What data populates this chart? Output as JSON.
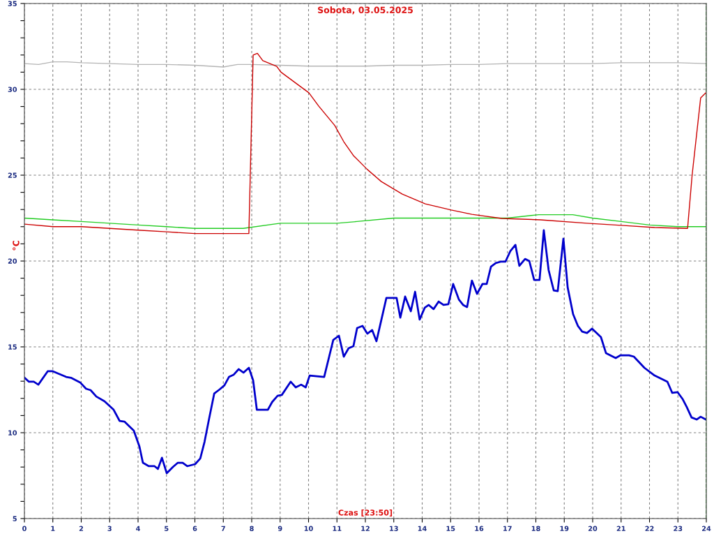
{
  "chart_data": {
    "type": "line",
    "title": "Sobota, 03.05.2025",
    "xlabel": "Czas [23:50]",
    "ylabel": "°C",
    "xlim": [
      0,
      24
    ],
    "ylim": [
      5,
      35
    ],
    "xticks": [
      0,
      1,
      2,
      3,
      4,
      5,
      6,
      7,
      8,
      9,
      10,
      11,
      12,
      13,
      14,
      15,
      16,
      17,
      18,
      19,
      20,
      21,
      22,
      23,
      24
    ],
    "yticks": [
      5,
      {
        "value": 6,
        "label": null
      },
      {
        "value": 7,
        "label": null
      },
      {
        "value": 8,
        "label": null
      },
      {
        "value": 9,
        "label": null
      },
      10,
      {
        "value": 11,
        "label": null
      },
      {
        "value": 12,
        "label": null
      },
      {
        "value": 13,
        "label": null
      },
      {
        "value": 14,
        "label": null
      },
      15,
      {
        "value": 16,
        "label": null
      },
      {
        "value": 17,
        "label": null
      },
      {
        "value": 18,
        "label": null
      },
      {
        "value": 19,
        "label": null
      },
      20,
      {
        "value": 21,
        "label": null
      },
      {
        "value": 22,
        "label": null
      },
      {
        "value": 23,
        "label": null
      },
      {
        "value": 24,
        "label": null
      },
      25,
      {
        "value": 26,
        "label": null
      },
      {
        "value": 27,
        "label": null
      },
      {
        "value": 28,
        "label": null
      },
      {
        "value": 29,
        "label": null
      },
      30,
      {
        "value": 31,
        "label": null
      },
      {
        "value": 32,
        "label": null
      },
      {
        "value": 33,
        "label": null
      },
      {
        "value": 34,
        "label": null
      },
      35
    ],
    "grid": true,
    "legend": false,
    "marker": "none",
    "line_style": "solid",
    "ref_lines": [
      {
        "axis": "x",
        "value": 24,
        "color": "#008000",
        "line_style": "dashed"
      }
    ],
    "series": [
      {
        "color": "#b4b4b4",
        "x": [
          0,
          0.5,
          1,
          1.5,
          2,
          3,
          4,
          5,
          6,
          7,
          7.5,
          8,
          9,
          10,
          11,
          12,
          13,
          14,
          15,
          16,
          17,
          18,
          19,
          20,
          21,
          22,
          23,
          24
        ],
        "values": [
          31.5,
          31.45,
          31.6,
          31.6,
          31.55,
          31.5,
          31.45,
          31.45,
          31.4,
          31.3,
          31.45,
          31.45,
          31.4,
          31.35,
          31.35,
          31.35,
          31.4,
          31.4,
          31.45,
          31.45,
          31.5,
          31.5,
          31.5,
          31.5,
          31.55,
          31.55,
          31.55,
          31.5
        ]
      },
      {
        "color": "#22cc22",
        "x": [
          0,
          1,
          2,
          3,
          4,
          5,
          6,
          7,
          7.7,
          9,
          10,
          11,
          11.7,
          13,
          14,
          15,
          16,
          17,
          18.1,
          19.3,
          20,
          21,
          22,
          23,
          24
        ],
        "values": [
          22.5,
          22.4,
          22.3,
          22.2,
          22.1,
          22.0,
          21.9,
          21.9,
          21.9,
          22.2,
          22.2,
          22.2,
          22.3,
          22.5,
          22.5,
          22.5,
          22.5,
          22.5,
          22.7,
          22.7,
          22.5,
          22.3,
          22.1,
          22.0,
          22.0
        ]
      },
      {
        "color": "#cc0000",
        "x": [
          0,
          1,
          2,
          3,
          4,
          5,
          6,
          7,
          7.7,
          7.9,
          8.05,
          8.2,
          8.39,
          8.88,
          9.03,
          10.01,
          10.36,
          10.92,
          11.24,
          11.58,
          12.07,
          12.56,
          12.96,
          13.3,
          14.11,
          15.02,
          15.75,
          16.8,
          18.16,
          19.8,
          21.1,
          22.18,
          23.3,
          23.34,
          23.5,
          23.8,
          23.98
        ],
        "values": [
          22.15,
          22.0,
          22.0,
          21.9,
          21.8,
          21.7,
          21.6,
          21.6,
          21.6,
          21.6,
          32.0,
          32.1,
          31.67,
          31.34,
          31.0,
          29.8,
          29.02,
          27.9,
          26.95,
          26.14,
          25.33,
          24.63,
          24.23,
          23.9,
          23.33,
          22.97,
          22.72,
          22.48,
          22.4,
          22.2,
          22.07,
          21.95,
          21.9,
          21.9,
          25.0,
          29.5,
          29.8
        ]
      },
      {
        "color": "#0000cc",
        "x": [
          0,
          0.16,
          0.33,
          0.49,
          0.82,
          1.0,
          1.47,
          1.64,
          1.96,
          2.17,
          2.33,
          2.53,
          2.82,
          3.14,
          3.35,
          3.52,
          3.85,
          4.05,
          4.17,
          4.38,
          4.58,
          4.7,
          4.84,
          5.01,
          5.23,
          5.4,
          5.57,
          5.73,
          6.01,
          6.19,
          6.34,
          6.5,
          6.68,
          6.87,
          7.04,
          7.2,
          7.36,
          7.54,
          7.71,
          7.9,
          8.05,
          8.18,
          8.57,
          8.72,
          8.91,
          9.06,
          9.37,
          9.55,
          9.74,
          9.9,
          10.04,
          10.55,
          10.87,
          11.07,
          11.24,
          11.41,
          11.58,
          11.71,
          11.9,
          12.07,
          12.24,
          12.39,
          12.74,
          13.1,
          13.23,
          13.4,
          13.6,
          13.75,
          13.91,
          14.09,
          14.23,
          14.4,
          14.58,
          14.75,
          14.92,
          15.09,
          15.29,
          15.44,
          15.58,
          15.75,
          15.93,
          16.12,
          16.27,
          16.42,
          16.59,
          16.76,
          16.93,
          17.1,
          17.28,
          17.42,
          17.62,
          17.77,
          17.94,
          18.13,
          18.28,
          18.45,
          18.63,
          18.77,
          18.97,
          19.12,
          19.31,
          19.48,
          19.63,
          19.8,
          19.98,
          20.29,
          20.47,
          20.81,
          20.98,
          21.28,
          21.45,
          21.82,
          22.18,
          22.63,
          22.8,
          22.99,
          23.17,
          23.31,
          23.48,
          23.66,
          23.8,
          23.98
        ],
        "values": [
          13.21,
          12.97,
          12.97,
          12.8,
          13.58,
          13.58,
          13.25,
          13.2,
          12.93,
          12.56,
          12.48,
          12.11,
          11.83,
          11.34,
          10.69,
          10.65,
          10.12,
          9.19,
          8.25,
          8.05,
          8.05,
          7.89,
          8.54,
          7.64,
          8.01,
          8.25,
          8.25,
          8.05,
          8.17,
          8.5,
          9.47,
          10.81,
          12.28,
          12.52,
          12.76,
          13.25,
          13.37,
          13.7,
          13.5,
          13.78,
          13.05,
          11.34,
          11.34,
          11.79,
          12.15,
          12.2,
          12.97,
          12.64,
          12.8,
          12.64,
          13.33,
          13.25,
          15.4,
          15.65,
          14.43,
          14.92,
          15.04,
          16.1,
          16.22,
          15.77,
          15.98,
          15.33,
          17.85,
          17.85,
          16.7,
          17.93,
          17.07,
          18.21,
          16.59,
          17.28,
          17.44,
          17.2,
          17.64,
          17.44,
          17.48,
          18.66,
          17.76,
          17.44,
          17.32,
          18.86,
          18.09,
          18.66,
          18.66,
          19.67,
          19.88,
          19.96,
          19.96,
          20.57,
          20.94,
          19.72,
          20.12,
          20.0,
          18.9,
          18.9,
          21.79,
          19.47,
          18.29,
          18.25,
          21.3,
          18.46,
          16.91,
          16.22,
          15.89,
          15.81,
          16.06,
          15.57,
          14.63,
          14.35,
          14.51,
          14.51,
          14.43,
          13.78,
          13.33,
          12.97,
          12.32,
          12.36,
          11.95,
          11.5,
          10.89,
          10.77,
          10.93,
          10.77
        ]
      }
    ]
  }
}
